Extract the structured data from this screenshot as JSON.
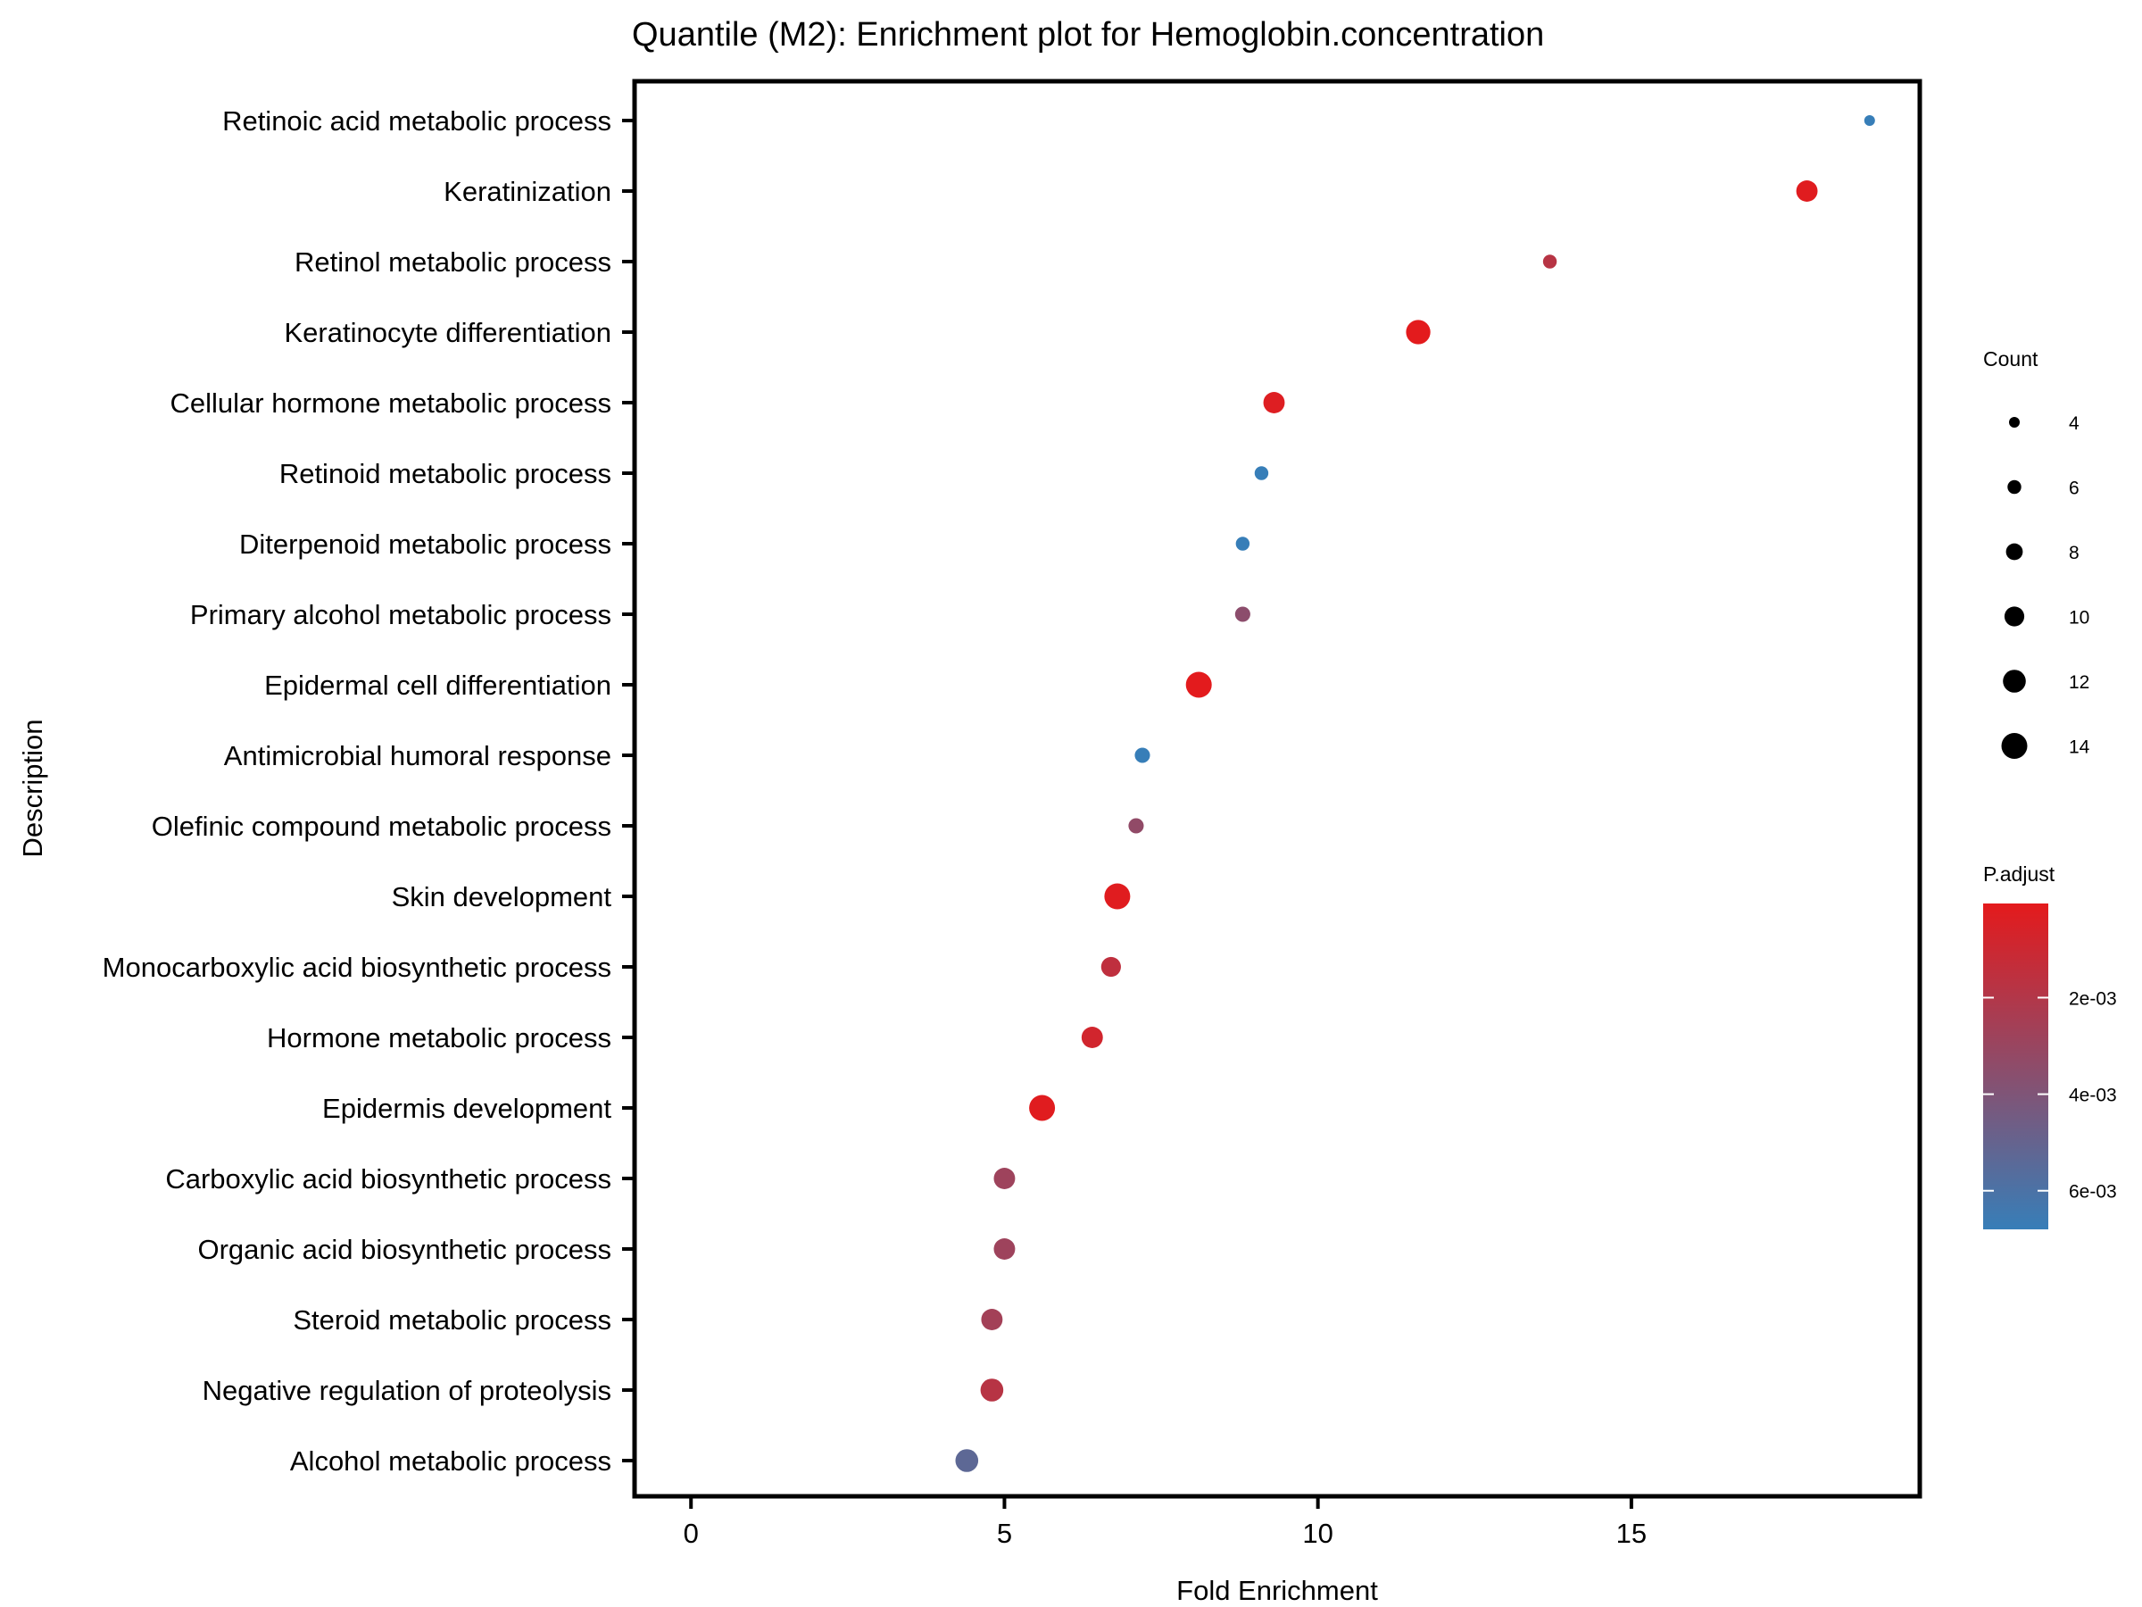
{
  "chart_data": {
    "type": "scatter",
    "title": "Quantile (M2): Enrichment plot for Hemoglobin.concentration",
    "xlabel": "Fold Enrichment",
    "ylabel": "Description",
    "xlim": [
      -0.9,
      19.6
    ],
    "x_ticks": [
      0,
      5,
      10,
      15
    ],
    "grid": false,
    "categories": [
      "Retinoic acid metabolic process",
      "Keratinization",
      "Retinol metabolic process",
      "Keratinocyte differentiation",
      "Cellular hormone metabolic process",
      "Retinoid metabolic process",
      "Diterpenoid metabolic process",
      "Primary alcohol metabolic process",
      "Epidermal cell differentiation",
      "Antimicrobial humoral response",
      "Olefinic compound metabolic process",
      "Skin development",
      "Monocarboxylic acid biosynthetic process",
      "Hormone metabolic process",
      "Epidermis development",
      "Carboxylic acid biosynthetic process",
      "Organic acid biosynthetic process",
      "Steroid metabolic process",
      "Negative regulation of proteolysis",
      "Alcohol metabolic process"
    ],
    "points": [
      {
        "description": "Retinoic acid metabolic process",
        "fold_enrichment": 18.8,
        "count": 4,
        "p_adjust": 0.0068
      },
      {
        "description": "Keratinization",
        "fold_enrichment": 17.8,
        "count": 11,
        "p_adjust": 0.0002
      },
      {
        "description": "Retinol metabolic process",
        "fold_enrichment": 13.7,
        "count": 6,
        "p_adjust": 0.0018
      },
      {
        "description": "Keratinocyte differentiation",
        "fold_enrichment": 11.6,
        "count": 13,
        "p_adjust": 0.0001
      },
      {
        "description": "Cellular hormone metabolic process",
        "fold_enrichment": 9.3,
        "count": 11,
        "p_adjust": 0.0003
      },
      {
        "description": "Retinoid metabolic process",
        "fold_enrichment": 9.1,
        "count": 6,
        "p_adjust": 0.0068
      },
      {
        "description": "Diterpenoid metabolic process",
        "fold_enrichment": 8.8,
        "count": 6,
        "p_adjust": 0.0068
      },
      {
        "description": "Primary alcohol metabolic process",
        "fold_enrichment": 8.8,
        "count": 7,
        "p_adjust": 0.0035
      },
      {
        "description": "Epidermal cell differentiation",
        "fold_enrichment": 8.1,
        "count": 14,
        "p_adjust": 0.0001
      },
      {
        "description": "Antimicrobial humoral response",
        "fold_enrichment": 7.2,
        "count": 7,
        "p_adjust": 0.0068
      },
      {
        "description": "Olefinic compound metabolic process",
        "fold_enrichment": 7.1,
        "count": 7,
        "p_adjust": 0.0033
      },
      {
        "description": "Skin development",
        "fold_enrichment": 6.8,
        "count": 14,
        "p_adjust": 0.0002
      },
      {
        "description": "Monocarboxylic acid biosynthetic process",
        "fold_enrichment": 6.7,
        "count": 10,
        "p_adjust": 0.0015
      },
      {
        "description": "Hormone metabolic process",
        "fold_enrichment": 6.4,
        "count": 11,
        "p_adjust": 0.0008
      },
      {
        "description": "Epidermis development",
        "fold_enrichment": 5.6,
        "count": 14,
        "p_adjust": 0.0002
      },
      {
        "description": "Carboxylic acid biosynthetic process",
        "fold_enrichment": 5.0,
        "count": 11,
        "p_adjust": 0.0028
      },
      {
        "description": "Organic acid biosynthetic process",
        "fold_enrichment": 5.0,
        "count": 11,
        "p_adjust": 0.0028
      },
      {
        "description": "Steroid metabolic process",
        "fold_enrichment": 4.8,
        "count": 11,
        "p_adjust": 0.0026
      },
      {
        "description": "Negative regulation of proteolysis",
        "fold_enrichment": 4.8,
        "count": 12,
        "p_adjust": 0.0018
      },
      {
        "description": "Alcohol metabolic process",
        "fold_enrichment": 4.4,
        "count": 12,
        "p_adjust": 0.0053
      }
    ],
    "legend": {
      "placement": "right",
      "size": {
        "title": "Count",
        "values": [
          4,
          6,
          8,
          10,
          12,
          14
        ]
      },
      "color": {
        "title": "P.adjust",
        "range": [
          5e-05,
          0.0068
        ],
        "ticks": [
          0.002,
          0.004,
          0.006
        ],
        "tick_labels": [
          "2e-03",
          "4e-03",
          "6e-03"
        ],
        "low_color": "#E41A1C",
        "high_color": "#377EB8"
      }
    }
  }
}
